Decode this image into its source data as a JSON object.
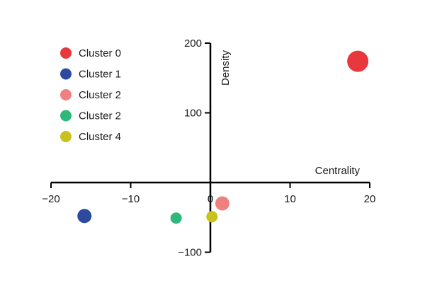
{
  "chart_data": {
    "type": "scatter",
    "xlabel": "Centrality",
    "ylabel": "Density",
    "xlim": [
      -20,
      20
    ],
    "ylim": [
      -100,
      200
    ],
    "x_ticks": [
      -20,
      -10,
      0,
      10,
      20
    ],
    "x_tick_labels": [
      "−20",
      "−10",
      "0",
      "10",
      "20"
    ],
    "y_ticks": [
      -100,
      100,
      200
    ],
    "y_tick_labels": [
      "−100",
      "100",
      "200"
    ],
    "grid": false,
    "legend_position": "top-left",
    "series": [
      {
        "name": "Cluster 0",
        "color": "#e8383d",
        "x": 18.5,
        "y": 174,
        "size": "large"
      },
      {
        "name": "Cluster 1",
        "color": "#2e4a9e",
        "x": -15.8,
        "y": -48,
        "size": "medium"
      },
      {
        "name": "Cluster 2",
        "color": "#f08080",
        "x": 1.5,
        "y": -30,
        "size": "medium"
      },
      {
        "name": "Cluster 2",
        "color": "#2eb87a",
        "x": -4.3,
        "y": -51,
        "size": "small"
      },
      {
        "name": "Cluster 4",
        "color": "#c8c21a",
        "x": 0.2,
        "y": -49,
        "size": "small"
      }
    ]
  }
}
